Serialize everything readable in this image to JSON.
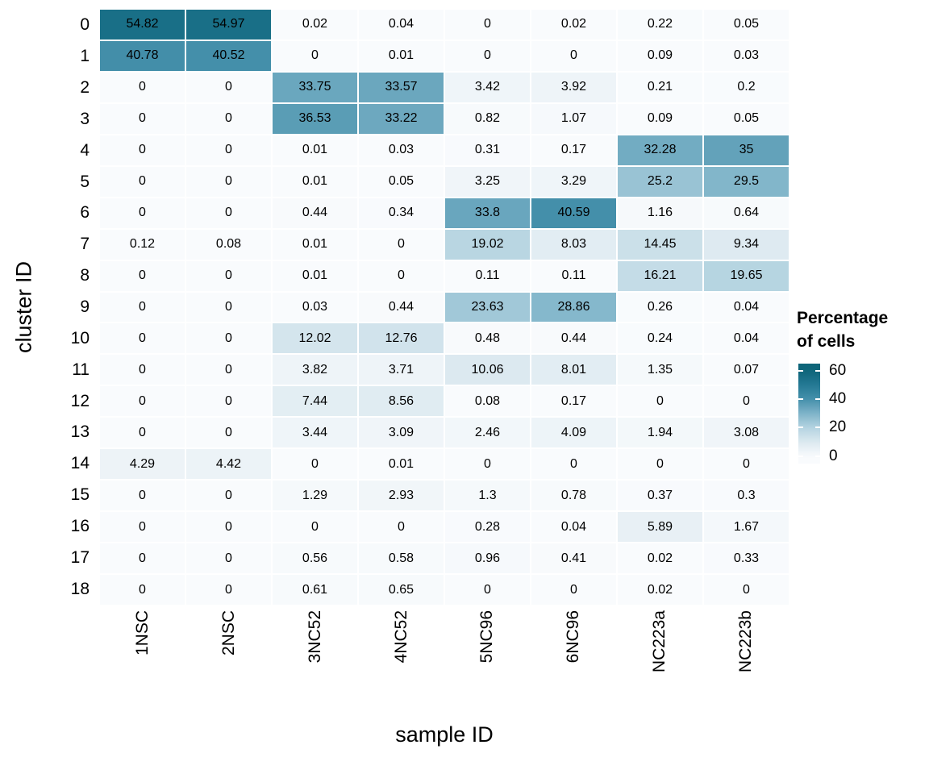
{
  "chart_data": {
    "type": "heatmap",
    "title": "",
    "xlabel": "sample ID",
    "ylabel": "cluster ID",
    "legend_position": "right",
    "grid": false,
    "columns": [
      "1NSC",
      "2NSC",
      "3NC52",
      "4NC52",
      "5NC96",
      "6NC96",
      "NC223a",
      "NC223b"
    ],
    "rows": [
      "0",
      "1",
      "2",
      "3",
      "4",
      "5",
      "6",
      "7",
      "8",
      "9",
      "10",
      "11",
      "12",
      "13",
      "14",
      "15",
      "16",
      "17",
      "18"
    ],
    "values": [
      [
        54.82,
        54.97,
        0.02,
        0.04,
        0,
        0.02,
        0.22,
        0.05
      ],
      [
        40.78,
        40.52,
        0,
        0.01,
        0,
        0,
        0.09,
        0.03
      ],
      [
        0,
        0,
        33.75,
        33.57,
        3.42,
        3.92,
        0.21,
        0.2
      ],
      [
        0,
        0,
        36.53,
        33.22,
        0.82,
        1.07,
        0.09,
        0.05
      ],
      [
        0,
        0,
        0.01,
        0.03,
        0.31,
        0.17,
        32.28,
        35
      ],
      [
        0,
        0,
        0.01,
        0.05,
        3.25,
        3.29,
        25.2,
        29.5
      ],
      [
        0,
        0,
        0.44,
        0.34,
        33.8,
        40.59,
        1.16,
        0.64
      ],
      [
        0.12,
        0.08,
        0.01,
        0,
        19.02,
        8.03,
        14.45,
        9.34
      ],
      [
        0,
        0,
        0.01,
        0,
        0.11,
        0.11,
        16.21,
        19.65
      ],
      [
        0,
        0,
        0.03,
        0.44,
        23.63,
        28.86,
        0.26,
        0.04
      ],
      [
        0,
        0,
        12.02,
        12.76,
        0.48,
        0.44,
        0.24,
        0.04
      ],
      [
        0,
        0,
        3.82,
        3.71,
        10.06,
        8.01,
        1.35,
        0.07
      ],
      [
        0,
        0,
        7.44,
        8.56,
        0.08,
        0.17,
        0,
        0
      ],
      [
        0,
        0,
        3.44,
        3.09,
        2.46,
        4.09,
        1.94,
        3.08
      ],
      [
        4.29,
        4.42,
        0,
        0.01,
        0,
        0,
        0,
        0
      ],
      [
        0,
        0,
        1.29,
        2.93,
        1.3,
        0.78,
        0.37,
        0.3
      ],
      [
        0,
        0,
        0,
        0,
        0.28,
        0.04,
        5.89,
        1.67
      ],
      [
        0,
        0,
        0.56,
        0.58,
        0.96,
        0.41,
        0.02,
        0.33
      ],
      [
        0,
        0,
        0.61,
        0.65,
        0,
        0,
        0.02,
        0
      ]
    ],
    "colorscale": {
      "min": 0,
      "max": 60,
      "stops": [
        {
          "t": 0,
          "color": "#f9fbfd"
        },
        {
          "t": 0.167,
          "color": "#dce9f0"
        },
        {
          "t": 0.333,
          "color": "#b5d4e1"
        },
        {
          "t": 0.5,
          "color": "#7fb4c9"
        },
        {
          "t": 0.667,
          "color": "#4690ab"
        },
        {
          "t": 0.833,
          "color": "#247995"
        },
        {
          "t": 1,
          "color": "#0e6579"
        }
      ]
    },
    "legend": {
      "title_line1": "Percentage",
      "title_line2": "of cells",
      "ticks": [
        60,
        40,
        20,
        0
      ]
    },
    "cell_text_color": "#000000",
    "background": "#ffffff"
  }
}
